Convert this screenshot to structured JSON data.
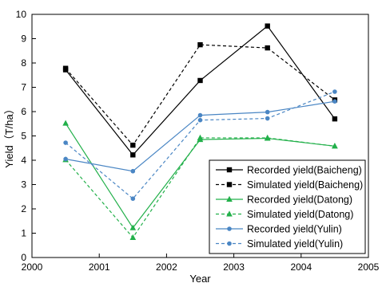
{
  "chart_data": {
    "type": "line",
    "xlabel": "Year",
    "ylabel": "Yield（T/ha）",
    "xlim": [
      2000,
      2005
    ],
    "ylim": [
      0,
      10
    ],
    "x_ticks": [
      "2000",
      "2001",
      "2002",
      "2003",
      "2004",
      "2005"
    ],
    "y_ticks": [
      "0",
      "1",
      "2",
      "3",
      "4",
      "5",
      "6",
      "7",
      "8",
      "9",
      "10"
    ],
    "x": [
      2000.5,
      2001.5,
      2002.5,
      2003.5,
      2004.5
    ],
    "legend_position": "bottom-right",
    "grid": false,
    "series": [
      {
        "name": "Recorded yield(Baicheng)",
        "values": [
          7.72,
          4.22,
          7.28,
          9.52,
          5.7
        ],
        "color": "#000000",
        "dash": "solid",
        "marker": "square"
      },
      {
        "name": "Simulated yield(Baicheng)",
        "values": [
          7.78,
          4.62,
          8.75,
          8.62,
          6.48
        ],
        "color": "#000000",
        "dash": "dashed",
        "marker": "square"
      },
      {
        "name": "Recorded yield(Datong)",
        "values": [
          5.52,
          1.22,
          4.85,
          4.9,
          4.58
        ],
        "color": "#22b04a",
        "dash": "solid",
        "marker": "triangle"
      },
      {
        "name": "Simulated yield(Datong)",
        "values": [
          4.02,
          0.82,
          4.92,
          4.92,
          4.58
        ],
        "color": "#22b04a",
        "dash": "dashed",
        "marker": "triangle"
      },
      {
        "name": "Recorded yield(Yulin)",
        "values": [
          4.05,
          3.55,
          5.85,
          5.98,
          6.42
        ],
        "color": "#4a86c4",
        "dash": "solid",
        "marker": "circle"
      },
      {
        "name": "Simulated yield(Yulin)",
        "values": [
          4.72,
          2.42,
          5.65,
          5.72,
          6.82
        ],
        "color": "#4a86c4",
        "dash": "dashed",
        "marker": "circle"
      }
    ]
  }
}
